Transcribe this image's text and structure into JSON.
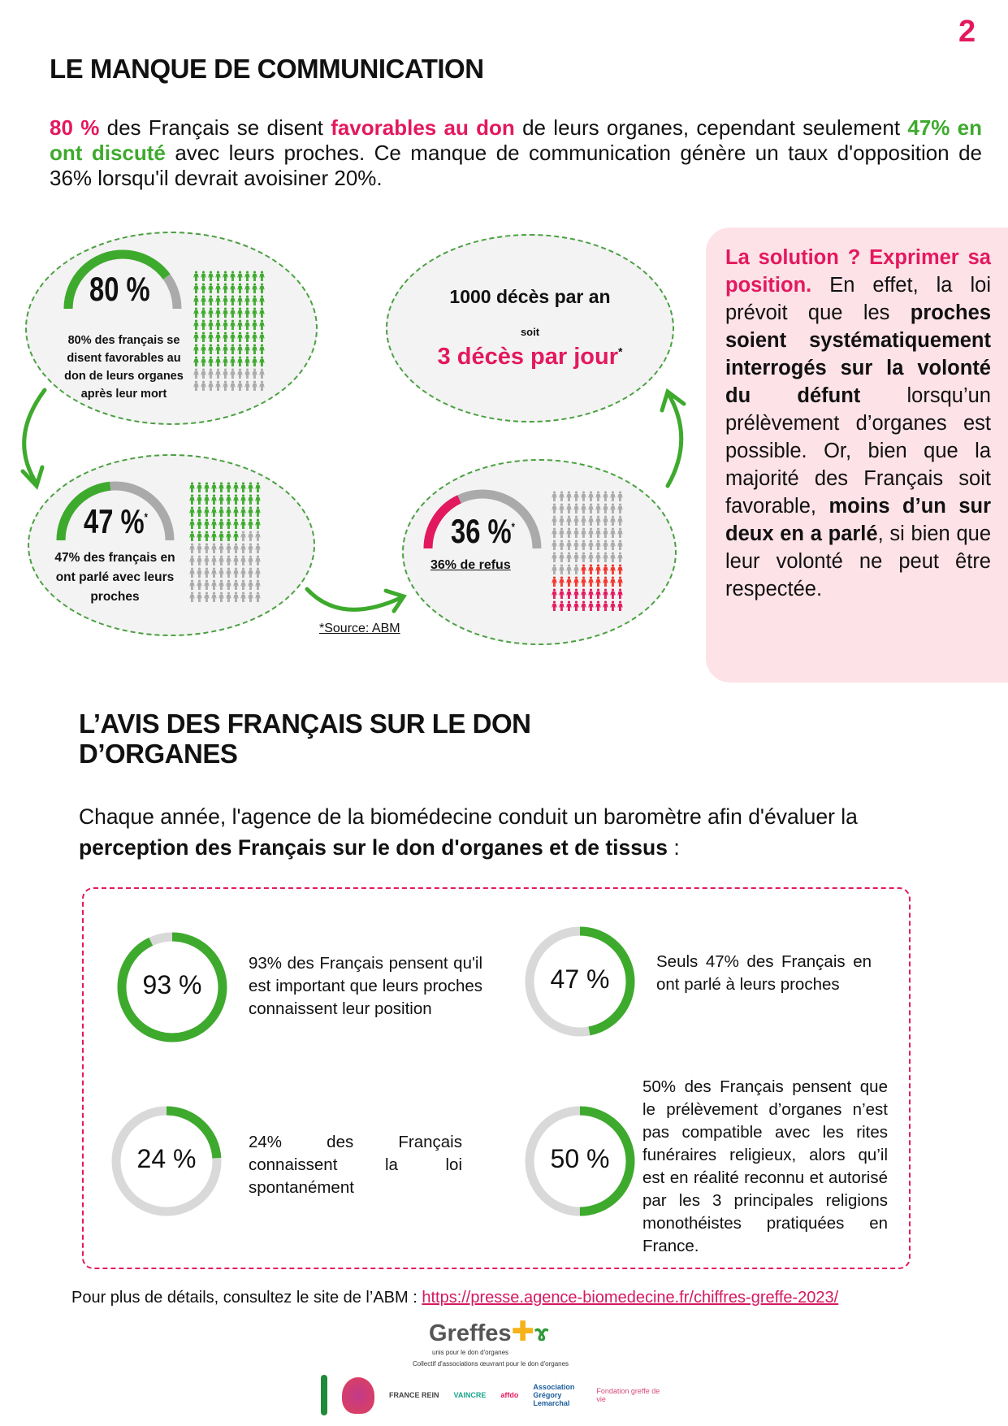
{
  "page_number": "2",
  "section1": {
    "title": "LE MANQUE DE COMMUNICATION",
    "intro": {
      "p1": "80 %",
      "p2": " des Français se disent ",
      "p3": "favorables au don",
      "p4": " de leurs organes, cependant seulement ",
      "p5": "47% en ont discuté",
      "p6": " avec leurs proches. Ce manque de communication génère un taux d'opposition de 36% lorsqu'il devrait avoisiner 20%."
    },
    "panel_favorable": {
      "value_label": "80 %",
      "percent": 80,
      "caption": "80% des français se disent favorables au don de leurs organes après leur mort",
      "icons_highlighted": 80,
      "color": "#3eaa2d"
    },
    "panel_deaths": {
      "line1": "1000 décès par an",
      "line2": "soit",
      "line3": "3 décès par jour",
      "asterisk": "*"
    },
    "panel_discussed": {
      "value_label": "47 %",
      "asterisk": "*",
      "percent": 47,
      "caption": "47% des français en ont parlé avec leurs proches",
      "icons_highlighted": 47,
      "color": "#3eaa2d"
    },
    "panel_refusal": {
      "value_label": "36 %",
      "asterisk": "*",
      "percent": 36,
      "caption": "36% de refus",
      "icons_highlighted": 36,
      "color": "#e3195f"
    },
    "source": "*Source: ABM",
    "solution": {
      "s1": "La solution ? Exprimer sa position.",
      "s2": " En effet, la loi prévoit que les ",
      "s3": "proches soient systématiquement interrogés sur la volonté du défunt",
      "s4": " lorsqu’un prélèvement d’organes est possible. Or, bien que la majorité des Français soit favorable, ",
      "s5": "moins d’un sur deux en a parlé",
      "s6": ", si bien que leur volonté ne peut être respectée."
    }
  },
  "section2": {
    "title_line1": "L’AVIS DES FRANÇAIS SUR LE DON",
    "title_line2": "D’ORGANES",
    "intro1": "Chaque année, l'agence de la biomédecine conduit un baromètre afin d'évaluer la ",
    "intro2": "perception des Français sur le don d'organes et de tissus",
    "intro3": " :",
    "stats": [
      {
        "label": "93 %",
        "percent": 93,
        "text": "93% des Français pensent qu'il est important que leurs proches connaissent leur position"
      },
      {
        "label": "47 %",
        "percent": 47,
        "text": "Seuls 47% des Français en ont parlé à leurs proches"
      },
      {
        "label": "24 %",
        "percent": 24,
        "text": "24% des Français connaissent la loi spontanément"
      },
      {
        "label": "50 %",
        "percent": 50,
        "text": "50% des Français pensent que le prélèvement d’organes n’est pas compatible avec les rites funéraires religieux, alors qu’il est en réalité reconnu et autorisé par les 3 principales religions monothéistes pratiquées en France."
      }
    ]
  },
  "footer": {
    "text": "Pour plus de détails, consultez le site de l’ABM : ",
    "link": "https://presse.agence-biomedecine.fr/chiffres-greffe-2023/"
  },
  "logos": {
    "main": "Greffes",
    "main_tagline": "unis pour le don d'organes",
    "collective": "Collectif d'associations œuvrant pour le don d'organes",
    "partners": [
      "FRANCE REIN",
      "VAINCRE",
      "affdo",
      "Association Grégory Lemarchal",
      "Fondation greffe de vie"
    ]
  },
  "colors": {
    "pink": "#e3195f",
    "green": "#3eaa2d",
    "grey": "#aaaaaa",
    "pink_bg": "#fde2e8"
  }
}
